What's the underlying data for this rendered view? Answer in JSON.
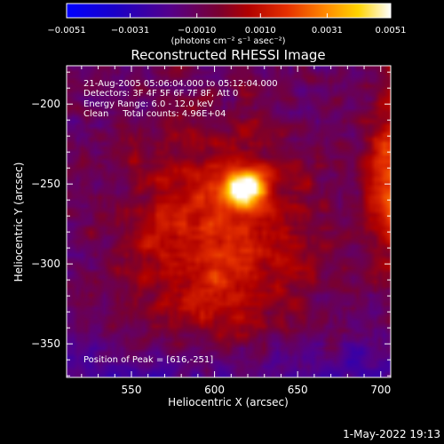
{
  "chart_data": {
    "type": "heatmap",
    "title": "Reconstructed RHESSI Image",
    "xlabel": "Heliocentric X (arcsec)",
    "ylabel": "Heliocentric Y (arcsec)",
    "xlim": [
      511,
      706
    ],
    "ylim": [
      -371,
      -176
    ],
    "x_ticks": [
      550,
      600,
      650,
      700
    ],
    "y_ticks": [
      -200,
      -250,
      -300,
      -350
    ],
    "colormap": "red-temperature",
    "colorbar": {
      "range": [
        -0.0051,
        0.0051
      ],
      "ticks": [
        "-0.0051",
        "-0.0031",
        "-0.0010",
        "0.0010",
        "0.0031",
        "0.0051"
      ],
      "label": "(photons cm⁻² s⁻¹ asec⁻²)"
    },
    "peak": {
      "x": 616,
      "y": -251
    },
    "annotations": [
      "21-Aug-2005 05:06:04.000 to 05:12:04.000",
      "Detectors: 3F 4F 5F 6F 7F 8F, Att 0",
      "Energy Range: 6.0 - 12.0 keV",
      "Clean     Total counts: 4.96E+04"
    ],
    "peak_label": "Position of Peak = [616,-251]"
  },
  "footer": {
    "timestamp": "1-May-2022 19:13"
  },
  "colors": {
    "background": "#000000",
    "text": "#ffffff"
  }
}
